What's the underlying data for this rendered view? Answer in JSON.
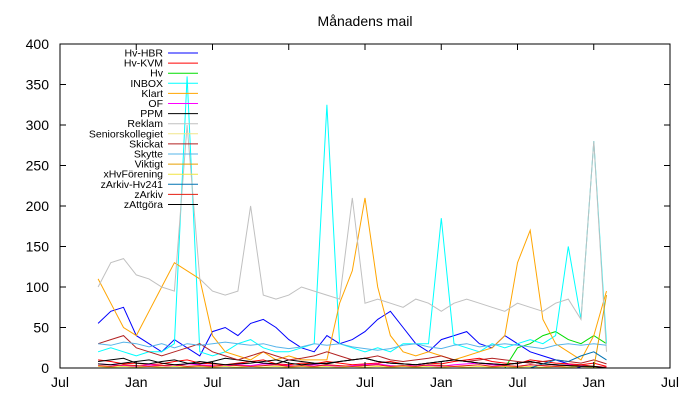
{
  "chart_data": {
    "type": "line",
    "title": "Månadens mail",
    "xlabel": "",
    "ylabel": "",
    "xunit": "months since first Jul tick",
    "xlim": [
      0,
      48
    ],
    "ylim": [
      0,
      400
    ],
    "yticks": [
      0,
      50,
      100,
      150,
      200,
      250,
      300,
      350,
      400
    ],
    "xticks": [
      {
        "x": 0,
        "label": "Jul"
      },
      {
        "x": 6,
        "label": "Jan"
      },
      {
        "x": 12,
        "label": "Jul"
      },
      {
        "x": 18,
        "label": "Jan"
      },
      {
        "x": 24,
        "label": "Jul"
      },
      {
        "x": 30,
        "label": "Jan"
      },
      {
        "x": 36,
        "label": "Jul"
      },
      {
        "x": 42,
        "label": "Jan"
      },
      {
        "x": 48,
        "label": "Jul"
      }
    ],
    "legend_position": "top-left",
    "x_start": 3,
    "x_step": 1,
    "series": [
      {
        "name": "Hv-HBR",
        "color": "#0000ff",
        "values": [
          55,
          70,
          75,
          40,
          30,
          20,
          35,
          25,
          15,
          45,
          50,
          40,
          55,
          60,
          50,
          35,
          25,
          20,
          40,
          30,
          35,
          45,
          60,
          70,
          50,
          30,
          20,
          35,
          40,
          45,
          30,
          25,
          40,
          30,
          20,
          15,
          10,
          5,
          0,
          0,
          0
        ]
      },
      {
        "name": "Hv-KVM",
        "color": "#ff0000",
        "values": [
          10,
          8,
          5,
          6,
          4,
          5,
          8,
          10,
          6,
          5,
          4,
          6,
          8,
          10,
          5,
          4,
          6,
          5,
          8,
          6,
          4,
          5,
          6,
          8,
          5,
          4,
          6,
          5,
          8,
          10,
          12,
          8,
          6,
          5,
          10,
          8,
          6,
          5,
          4,
          6,
          2
        ]
      },
      {
        "name": "Hv",
        "color": "#00dd00",
        "values": [
          0,
          0,
          0,
          0,
          0,
          0,
          0,
          0,
          0,
          0,
          0,
          0,
          0,
          0,
          0,
          0,
          0,
          0,
          0,
          0,
          0,
          0,
          0,
          0,
          0,
          0,
          0,
          0,
          0,
          0,
          0,
          0,
          0,
          25,
          30,
          40,
          45,
          35,
          30,
          40,
          30
        ]
      },
      {
        "name": "INBOX",
        "color": "#00ffff",
        "values": [
          20,
          25,
          20,
          15,
          20,
          20,
          30,
          360,
          20,
          15,
          20,
          30,
          35,
          25,
          20,
          20,
          25,
          30,
          325,
          30,
          25,
          20,
          25,
          20,
          30,
          30,
          30,
          185,
          30,
          25,
          20,
          30,
          25,
          30,
          35,
          30,
          40,
          150,
          60,
          280,
          30
        ]
      },
      {
        "name": "Klart",
        "color": "#ffa500",
        "values": [
          110,
          80,
          50,
          40,
          70,
          100,
          130,
          120,
          110,
          40,
          20,
          15,
          10,
          20,
          10,
          15,
          10,
          10,
          10,
          80,
          120,
          210,
          100,
          40,
          20,
          15,
          20,
          15,
          10,
          15,
          20,
          25,
          40,
          130,
          170,
          60,
          30,
          20,
          10,
          40,
          95
        ]
      },
      {
        "name": "OF",
        "color": "#ff00ff",
        "values": [
          5,
          4,
          3,
          2,
          4,
          3,
          2,
          5,
          4,
          3,
          2,
          4,
          3,
          5,
          4,
          3,
          2,
          4,
          3,
          2,
          3,
          4,
          5,
          3,
          2,
          4,
          3,
          2,
          4,
          5,
          6,
          4,
          3,
          2,
          4,
          3,
          2,
          4,
          3,
          2,
          1
        ]
      },
      {
        "name": "PPM",
        "color": "#000000",
        "values": [
          8,
          10,
          12,
          6,
          5,
          8,
          10,
          6,
          5,
          8,
          12,
          10,
          8,
          6,
          5,
          10,
          8,
          6,
          5,
          8,
          10,
          12,
          8,
          6,
          5,
          4,
          6,
          8,
          10,
          8,
          6,
          5,
          4,
          6,
          8,
          5,
          4,
          3,
          2,
          2,
          0
        ]
      },
      {
        "name": "Reklam",
        "color": "#c0c0c0",
        "values": [
          100,
          130,
          135,
          115,
          110,
          100,
          95,
          300,
          110,
          95,
          90,
          95,
          200,
          90,
          85,
          90,
          100,
          95,
          90,
          85,
          210,
          80,
          85,
          80,
          75,
          85,
          80,
          70,
          80,
          85,
          80,
          75,
          70,
          80,
          75,
          70,
          80,
          85,
          60,
          280,
          20
        ]
      },
      {
        "name": "Seniorskollegiet",
        "color": "#f0e68c",
        "values": [
          0,
          0,
          0,
          0,
          0,
          0,
          0,
          0,
          0,
          0,
          0,
          0,
          0,
          0,
          0,
          0,
          0,
          0,
          0,
          0,
          0,
          0,
          0,
          0,
          0,
          0,
          0,
          0,
          0,
          0,
          0,
          0,
          0,
          0,
          0,
          0,
          0,
          0,
          0,
          0,
          0
        ]
      },
      {
        "name": "Skickat",
        "color": "#b22222",
        "values": [
          30,
          35,
          40,
          25,
          20,
          15,
          20,
          25,
          30,
          20,
          15,
          10,
          15,
          20,
          15,
          10,
          12,
          15,
          20,
          15,
          10,
          12,
          15,
          10,
          8,
          10,
          12,
          15,
          10,
          8,
          10,
          12,
          10,
          8,
          6,
          8,
          10,
          8,
          6,
          10,
          5
        ]
      },
      {
        "name": "Skytte",
        "color": "#56b4e9",
        "values": [
          30,
          28,
          32,
          30,
          26,
          30,
          25,
          30,
          28,
          30,
          32,
          30,
          28,
          30,
          26,
          24,
          26,
          30,
          28,
          30,
          26,
          24,
          22,
          24,
          28,
          30,
          26,
          24,
          28,
          30,
          26,
          28,
          30,
          28,
          26,
          24,
          28,
          30,
          28,
          30,
          28
        ]
      },
      {
        "name": "Viktigt",
        "color": "#e69f00",
        "values": [
          0,
          0,
          0,
          0,
          0,
          0,
          0,
          0,
          0,
          0,
          0,
          0,
          0,
          0,
          0,
          0,
          0,
          0,
          0,
          0,
          0,
          0,
          0,
          0,
          0,
          0,
          0,
          0,
          0,
          0,
          0,
          0,
          0,
          0,
          0,
          0,
          0,
          0,
          0,
          0,
          90
        ]
      },
      {
        "name": "xHvFörening",
        "color": "#f0e442",
        "values": [
          2,
          1,
          2,
          1,
          2,
          1,
          2,
          1,
          2,
          1,
          2,
          1,
          2,
          1,
          2,
          1,
          2,
          1,
          2,
          1,
          2,
          1,
          2,
          1,
          2,
          1,
          2,
          1,
          2,
          1,
          2,
          1,
          2,
          1,
          2,
          1,
          2,
          1,
          2,
          1,
          0
        ]
      },
      {
        "name": "zArkiv-Hv241",
        "color": "#0072b2",
        "values": [
          0,
          0,
          0,
          0,
          0,
          0,
          0,
          0,
          0,
          0,
          0,
          0,
          0,
          0,
          0,
          0,
          0,
          0,
          0,
          0,
          0,
          0,
          0,
          0,
          0,
          0,
          0,
          0,
          0,
          0,
          0,
          0,
          0,
          0,
          0,
          5,
          10,
          8,
          15,
          20,
          10
        ]
      },
      {
        "name": "zArkiv",
        "color": "#e51e10",
        "values": [
          3,
          2,
          4,
          3,
          2,
          3,
          4,
          2,
          3,
          2,
          4,
          3,
          2,
          3,
          4,
          2,
          3,
          2,
          4,
          3,
          2,
          3,
          4,
          2,
          3,
          2,
          4,
          3,
          2,
          3,
          4,
          2,
          3,
          2,
          4,
          3,
          2,
          3,
          4,
          2,
          1
        ]
      },
      {
        "name": "zAttgöra",
        "color": "#000000",
        "values": [
          5,
          4,
          6,
          8,
          10,
          6,
          4,
          5,
          8,
          6,
          4,
          5,
          6,
          8,
          10,
          6,
          4,
          5,
          6,
          8,
          10,
          12,
          8,
          6,
          5,
          4,
          6,
          8,
          10,
          8,
          6,
          5,
          4,
          6,
          8,
          5,
          4,
          3,
          2,
          2,
          0
        ]
      }
    ]
  }
}
